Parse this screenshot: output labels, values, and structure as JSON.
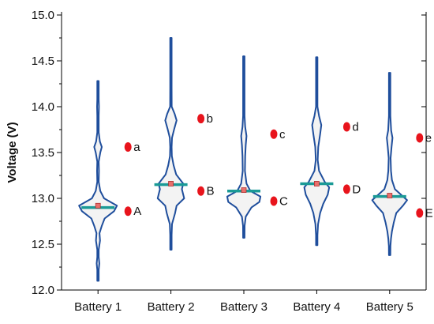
{
  "chart_data": {
    "type": "violin",
    "ylabel": "Voltage (V)",
    "ylim": [
      12.0,
      15.0
    ],
    "yticks": [
      "12.0",
      "12.5",
      "13.0",
      "13.5",
      "14.0",
      "14.5",
      "15.0"
    ],
    "categories": [
      "Battery 1",
      "Battery 2",
      "Battery 3",
      "Battery 4",
      "Battery 5"
    ],
    "grid": false,
    "colors": {
      "violin_outline": "#1f4e9c",
      "violin_fill": "#f3f3f3",
      "median_line": "#1a9a96",
      "mean_marker": "#e8706c",
      "annotation_dot": "#e8141c"
    },
    "violins": [
      {
        "category": "Battery 1",
        "min": 12.1,
        "max": 14.28,
        "median": 12.9,
        "mean": 12.92,
        "profile": [
          [
            12.1,
            0.0
          ],
          [
            12.22,
            0.02
          ],
          [
            12.29,
            0.07
          ],
          [
            12.36,
            0.02
          ],
          [
            12.44,
            0.02
          ],
          [
            12.54,
            0.11
          ],
          [
            12.62,
            0.08
          ],
          [
            12.7,
            0.2
          ],
          [
            12.78,
            0.35
          ],
          [
            12.86,
            0.85
          ],
          [
            12.92,
            1.0
          ],
          [
            13.0,
            0.32
          ],
          [
            13.08,
            0.12
          ],
          [
            13.18,
            0.03
          ],
          [
            13.3,
            0.05
          ],
          [
            13.4,
            0.02
          ],
          [
            13.5,
            0.12
          ],
          [
            13.56,
            0.2
          ],
          [
            13.62,
            0.1
          ],
          [
            13.72,
            0.02
          ],
          [
            13.9,
            0.01
          ],
          [
            14.0,
            0.05
          ],
          [
            14.08,
            0.01
          ],
          [
            14.28,
            0.0
          ]
        ],
        "label_low": "A",
        "label_low_y": 12.86,
        "label_high": "a",
        "label_high_y": 13.56
      },
      {
        "category": "Battery 2",
        "min": 12.44,
        "max": 14.75,
        "median": 13.15,
        "mean": 13.16,
        "profile": [
          [
            12.44,
            0.0
          ],
          [
            12.6,
            0.02
          ],
          [
            12.72,
            0.06
          ],
          [
            12.84,
            0.22
          ],
          [
            12.92,
            0.3
          ],
          [
            13.0,
            0.7
          ],
          [
            13.1,
            0.58
          ],
          [
            13.16,
            0.65
          ],
          [
            13.26,
            0.28
          ],
          [
            13.36,
            0.14
          ],
          [
            13.46,
            0.05
          ],
          [
            13.56,
            0.03
          ],
          [
            13.66,
            0.06
          ],
          [
            13.76,
            0.18
          ],
          [
            13.85,
            0.3
          ],
          [
            13.92,
            0.2
          ],
          [
            14.0,
            0.04
          ],
          [
            14.2,
            0.02
          ],
          [
            14.4,
            0.01
          ],
          [
            14.6,
            0.005
          ],
          [
            14.75,
            0.0
          ]
        ],
        "label_low": "B",
        "label_low_y": 13.08,
        "label_high": "b",
        "label_high_y": 13.87
      },
      {
        "category": "Battery 3",
        "min": 12.57,
        "max": 14.55,
        "median": 13.08,
        "mean": 13.09,
        "profile": [
          [
            12.57,
            0.0
          ],
          [
            12.7,
            0.04
          ],
          [
            12.8,
            0.1
          ],
          [
            12.9,
            0.4
          ],
          [
            12.96,
            0.82
          ],
          [
            13.02,
            0.88
          ],
          [
            13.08,
            0.35
          ],
          [
            13.16,
            0.14
          ],
          [
            13.3,
            0.06
          ],
          [
            13.46,
            0.07
          ],
          [
            13.58,
            0.1
          ],
          [
            13.68,
            0.14
          ],
          [
            13.78,
            0.07
          ],
          [
            13.9,
            0.02
          ],
          [
            14.1,
            0.02
          ],
          [
            14.28,
            0.03
          ],
          [
            14.4,
            0.01
          ],
          [
            14.55,
            0.0
          ]
        ],
        "label_low": "C",
        "label_low_y": 12.97,
        "label_high": "c",
        "label_high_y": 13.7
      },
      {
        "category": "Battery 4",
        "min": 12.49,
        "max": 14.54,
        "median": 13.16,
        "mean": 13.16,
        "profile": [
          [
            12.49,
            0.0
          ],
          [
            12.6,
            0.02
          ],
          [
            12.72,
            0.07
          ],
          [
            12.84,
            0.18
          ],
          [
            12.94,
            0.34
          ],
          [
            13.04,
            0.58
          ],
          [
            13.12,
            0.66
          ],
          [
            13.18,
            0.42
          ],
          [
            13.3,
            0.12
          ],
          [
            13.42,
            0.05
          ],
          [
            13.56,
            0.08
          ],
          [
            13.7,
            0.18
          ],
          [
            13.8,
            0.24
          ],
          [
            13.9,
            0.12
          ],
          [
            14.0,
            0.02
          ],
          [
            14.2,
            0.02
          ],
          [
            14.4,
            0.01
          ],
          [
            14.54,
            0.0
          ]
        ],
        "label_low": "D",
        "label_low_y": 13.1,
        "label_high": "d",
        "label_high_y": 13.78
      },
      {
        "category": "Battery 5",
        "min": 12.38,
        "max": 14.37,
        "median": 13.02,
        "mean": 13.03,
        "profile": [
          [
            12.38,
            0.0
          ],
          [
            12.48,
            0.04
          ],
          [
            12.56,
            0.07
          ],
          [
            12.64,
            0.12
          ],
          [
            12.74,
            0.22
          ],
          [
            12.84,
            0.35
          ],
          [
            12.92,
            0.7
          ],
          [
            12.98,
            0.92
          ],
          [
            13.04,
            0.6
          ],
          [
            13.1,
            0.28
          ],
          [
            13.2,
            0.12
          ],
          [
            13.3,
            0.07
          ],
          [
            13.44,
            0.05
          ],
          [
            13.56,
            0.1
          ],
          [
            13.66,
            0.15
          ],
          [
            13.74,
            0.08
          ],
          [
            13.9,
            0.02
          ],
          [
            14.1,
            0.03
          ],
          [
            14.25,
            0.01
          ],
          [
            14.37,
            0.0
          ]
        ],
        "label_low": "E",
        "label_low_y": 12.84,
        "label_high": "e",
        "label_high_y": 13.66
      }
    ]
  }
}
